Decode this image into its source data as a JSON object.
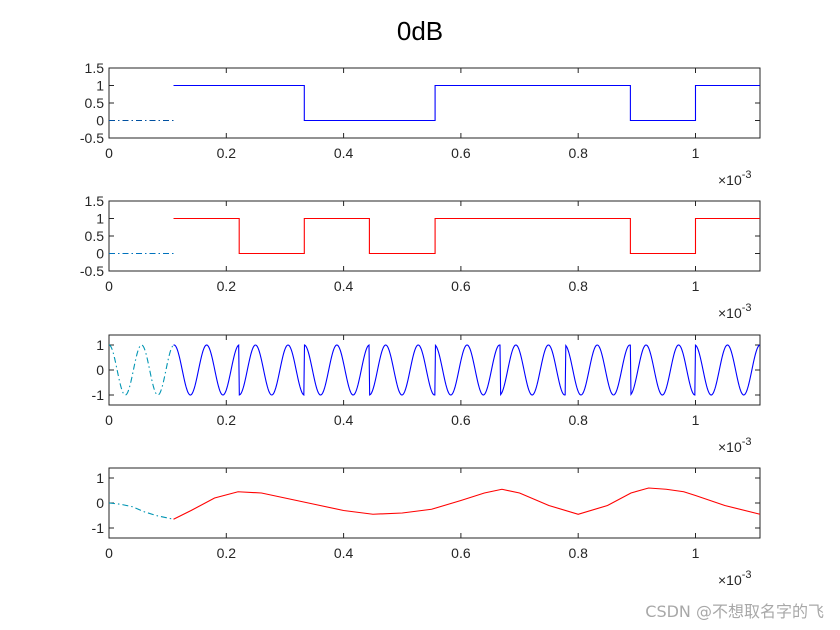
{
  "figure": {
    "title": "0dB",
    "watermark": "CSDN @不想取名字的飞"
  },
  "chart_data": [
    {
      "type": "line",
      "title": "",
      "xlim": [
        0,
        0.00111
      ],
      "ylim": [
        -0.5,
        1.5
      ],
      "x_ticks": [
        "0",
        "0.2",
        "0.4",
        "0.6",
        "0.8",
        "1"
      ],
      "y_ticks": [
        "1.5",
        "1",
        "0.5",
        "0",
        "-0.5"
      ],
      "x_exponent": "×10-3",
      "grid": false,
      "series": [
        {
          "color": "#0050a0",
          "style": "dashdot",
          "points": [
            [
              0,
              0
            ],
            [
              0.00011,
              0
            ]
          ]
        },
        {
          "color": "#0000ff",
          "style": "solid",
          "points": [
            [
              0.00011,
              1
            ],
            [
              0.000333,
              1
            ],
            [
              0.000333,
              0
            ],
            [
              0.000556,
              0
            ],
            [
              0.000556,
              1
            ],
            [
              0.000889,
              1
            ],
            [
              0.000889,
              0
            ],
            [
              0.001,
              0
            ],
            [
              0.001,
              1
            ],
            [
              0.00111,
              1
            ]
          ]
        }
      ]
    },
    {
      "type": "line",
      "title": "",
      "xlim": [
        0,
        0.00111
      ],
      "ylim": [
        -0.5,
        1.5
      ],
      "x_ticks": [
        "0",
        "0.2",
        "0.4",
        "0.6",
        "0.8",
        "1"
      ],
      "y_ticks": [
        "1.5",
        "1",
        "0.5",
        "0",
        "-0.5"
      ],
      "x_exponent": "×10-3",
      "grid": false,
      "series": [
        {
          "color": "#0072bd",
          "style": "dashdot",
          "points": [
            [
              0,
              0
            ],
            [
              0.00011,
              0
            ]
          ]
        },
        {
          "color": "#ff0000",
          "style": "solid",
          "points": [
            [
              0.00011,
              1
            ],
            [
              0.000222,
              1
            ],
            [
              0.000222,
              0
            ],
            [
              0.000333,
              0
            ],
            [
              0.000333,
              1
            ],
            [
              0.000444,
              1
            ],
            [
              0.000444,
              0
            ],
            [
              0.000556,
              0
            ],
            [
              0.000556,
              1
            ],
            [
              0.000889,
              1
            ],
            [
              0.000889,
              0
            ],
            [
              0.001,
              0
            ],
            [
              0.001,
              1
            ],
            [
              0.00111,
              1
            ]
          ]
        }
      ]
    },
    {
      "type": "line",
      "title": "",
      "xlim": [
        0,
        0.00111
      ],
      "ylim": [
        -1.4,
        1.4
      ],
      "x_ticks": [
        "0",
        "0.2",
        "0.4",
        "0.6",
        "0.8",
        "1"
      ],
      "y_ticks": [
        "1",
        "0",
        "-1"
      ],
      "x_exponent": "×10-3",
      "grid": false,
      "carrier_period": 5.55e-05,
      "series": [
        {
          "color": "#0095b3",
          "style": "dashdot",
          "x_range": [
            0,
            0.00011
          ]
        },
        {
          "color": "#0000ff",
          "style": "solid",
          "x_range": [
            0.00011,
            0.00111
          ],
          "phase_flips": [
            0.000222,
            0.000333,
            0.000444,
            0.000556,
            0.000667,
            0.000778,
            0.000889,
            0.001
          ]
        }
      ]
    },
    {
      "type": "line",
      "title": "",
      "xlim": [
        0,
        0.00111
      ],
      "ylim": [
        -1.4,
        1.4
      ],
      "x_ticks": [
        "0",
        "0.2",
        "0.4",
        "0.6",
        "0.8",
        "1"
      ],
      "y_ticks": [
        "1",
        "0",
        "-1"
      ],
      "x_exponent": "×10-3",
      "grid": false,
      "series": [
        {
          "color": "#0095b3",
          "style": "dashdot",
          "points": [
            [
              0,
              0
            ],
            [
              2e-05,
              -0.05
            ],
            [
              4e-05,
              -0.15
            ],
            [
              6e-05,
              -0.35
            ],
            [
              8e-05,
              -0.5
            ],
            [
              0.0001,
              -0.6
            ],
            [
              0.00011,
              -0.65
            ]
          ]
        },
        {
          "color": "#ff0000",
          "style": "solid",
          "points": [
            [
              0.00011,
              -0.65
            ],
            [
              0.00014,
              -0.3
            ],
            [
              0.00018,
              0.2
            ],
            [
              0.00022,
              0.45
            ],
            [
              0.00026,
              0.4
            ],
            [
              0.0003,
              0.2
            ],
            [
              0.00035,
              -0.05
            ],
            [
              0.0004,
              -0.3
            ],
            [
              0.00045,
              -0.45
            ],
            [
              0.0005,
              -0.4
            ],
            [
              0.00055,
              -0.25
            ],
            [
              0.0006,
              0.1
            ],
            [
              0.00064,
              0.4
            ],
            [
              0.00067,
              0.55
            ],
            [
              0.0007,
              0.4
            ],
            [
              0.00075,
              -0.1
            ],
            [
              0.0008,
              -0.45
            ],
            [
              0.00085,
              -0.1
            ],
            [
              0.00089,
              0.4
            ],
            [
              0.00092,
              0.6
            ],
            [
              0.00095,
              0.55
            ],
            [
              0.00098,
              0.45
            ],
            [
              0.001,
              0.3
            ],
            [
              0.00105,
              -0.1
            ],
            [
              0.00111,
              -0.45
            ]
          ]
        }
      ]
    }
  ]
}
